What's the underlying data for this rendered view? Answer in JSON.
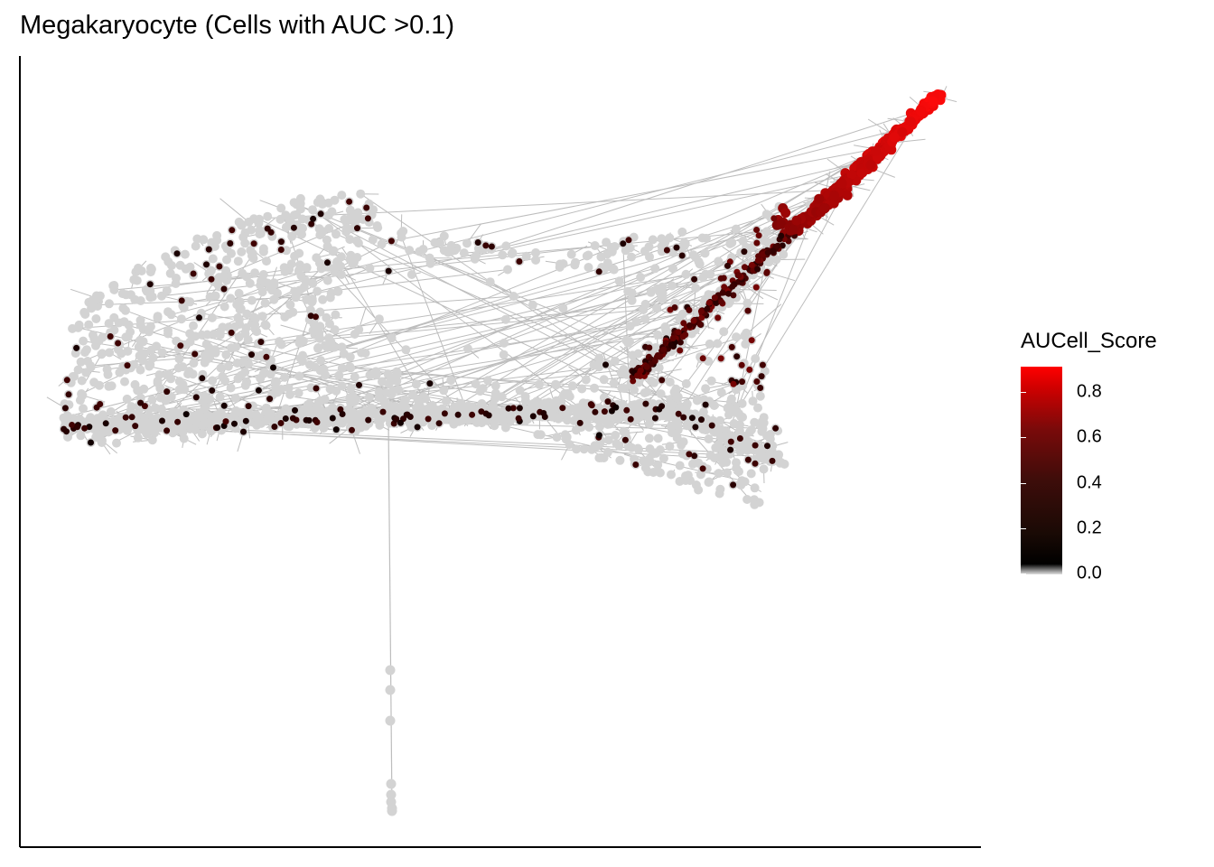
{
  "chart_data": {
    "type": "scatter",
    "title": "Megakaryocyte (Cells with AUC >0.1)",
    "xlabel": "",
    "ylabel": "",
    "legend": {
      "title": "AUCell_Score",
      "placement": "right",
      "ticks": [
        {
          "value": 0.0,
          "label": "0.0"
        },
        {
          "value": 0.2,
          "label": "0.2"
        },
        {
          "value": 0.4,
          "label": "0.4"
        },
        {
          "value": 0.6,
          "label": "0.6"
        },
        {
          "value": 0.8,
          "label": "0.8"
        }
      ],
      "range": [
        0,
        0.86
      ]
    },
    "colors": {
      "low": "#d3d3d3",
      "mid": "#000000",
      "high": "#ff0000",
      "edge": "#bdbdbd",
      "axis": "#000000"
    },
    "grid": false,
    "axes_visible": [
      "left",
      "bottom"
    ]
  }
}
